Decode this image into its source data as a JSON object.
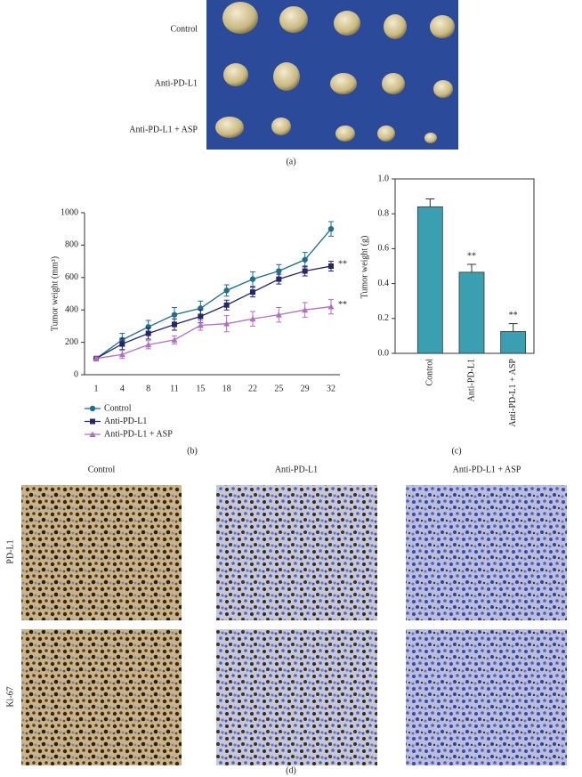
{
  "panel_labels": [
    "(a)",
    "(b)",
    "(c)",
    "(d)"
  ],
  "photo_rows": [
    "Control",
    "Anti-PD-L1",
    "Anti-PD-L1 + ASP"
  ],
  "ihc": {
    "columns": [
      "Control",
      "Anti-PD-L1",
      "Anti-PD-L1 + ASP"
    ],
    "rows": [
      "PD-L1",
      "Ki-67"
    ]
  },
  "chart_data": [
    {
      "type": "line",
      "ylabel": "Tumor weight (mm³)",
      "categories": [
        "1",
        "4",
        "8",
        "11",
        "15",
        "18",
        "22",
        "25",
        "29",
        "32"
      ],
      "ylim": [
        0,
        1000
      ],
      "yticks": [
        0,
        200,
        400,
        600,
        800,
        1000
      ],
      "series": [
        {
          "name": "Control",
          "color": "#1f6e8c",
          "marker": "circle",
          "values": [
            100,
            215,
            295,
            370,
            410,
            520,
            590,
            640,
            710,
            900
          ],
          "errors": [
            10,
            40,
            40,
            45,
            45,
            35,
            45,
            40,
            45,
            45
          ]
        },
        {
          "name": "Anti-PD-L1",
          "color": "#262668",
          "marker": "square",
          "annotation": "**",
          "values": [
            100,
            190,
            255,
            310,
            360,
            430,
            510,
            590,
            640,
            670
          ],
          "errors": [
            10,
            35,
            35,
            35,
            40,
            30,
            30,
            30,
            30,
            30
          ]
        },
        {
          "name": "Anti-PD-L1 + ASP",
          "color": "#b070c0",
          "marker": "triangle",
          "annotation": "**",
          "values": [
            100,
            125,
            185,
            215,
            305,
            315,
            345,
            370,
            400,
            420
          ],
          "errors": [
            10,
            25,
            25,
            25,
            30,
            50,
            45,
            45,
            45,
            45
          ]
        }
      ]
    },
    {
      "type": "bar",
      "ylabel": "Tumor weight (g)",
      "color": "#3a9fb0",
      "categories": [
        "Control",
        "Anti-PD-L1",
        "Anti-PD-L1 + ASP"
      ],
      "values": [
        0.84,
        0.465,
        0.125
      ],
      "errors": [
        0.045,
        0.045,
        0.045
      ],
      "annotations": [
        null,
        "**",
        "**"
      ],
      "ylim": [
        0,
        1
      ],
      "yticks": [
        {
          "value": 0,
          "label": "0.0"
        },
        0.2,
        0.4,
        0.6,
        0.8,
        {
          "value": 1,
          "label": "1.0"
        }
      ]
    }
  ]
}
